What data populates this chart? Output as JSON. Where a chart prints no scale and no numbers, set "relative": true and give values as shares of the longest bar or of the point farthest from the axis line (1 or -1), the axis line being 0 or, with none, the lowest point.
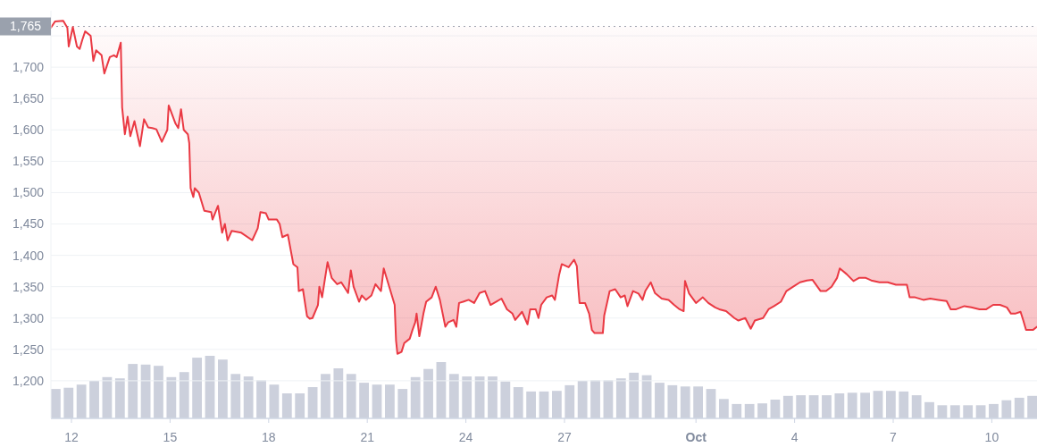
{
  "chart_data": [
    {
      "type": "line",
      "color": "#ea3943",
      "grid": "y",
      "x": [
        "--09-11T09:00",
        "--09-11T12:00",
        "--09-11T18:00",
        "--09-11T21:00",
        "--09-11T22:00",
        "--09-12T01:00",
        "--09-12T04:00",
        "--09-12T06:00",
        "--09-12T08:00",
        "--09-12T10:00",
        "--09-12T14:00",
        "--09-12T16:00",
        "--09-12T18:00",
        "--09-12T22:00",
        "--09-13T00:00",
        "--09-13T04:00",
        "--09-13T07:00",
        "--09-13T09:00",
        "--09-13T12:00",
        "--09-13T13:00",
        "--09-13T15:00",
        "--09-13T17:00",
        "--09-13T19:00",
        "--09-13T22:00",
        "--09-14T02:00",
        "--09-14T05:00",
        "--09-14T08:00",
        "--09-14T11:00",
        "--09-14T14:00",
        "--09-14T18:00",
        "--09-14T22:00",
        "--09-14T23:00",
        "--09-15T04:00",
        "--09-15T06:00",
        "--09-15T08:00",
        "--09-15T10:00",
        "--09-15T13:00",
        "--09-15T14:00",
        "--09-15T15:00",
        "--09-15T17:00",
        "--09-15T18:00",
        "--09-15T21:00",
        "--09-16T01:00",
        "--09-16T06:00",
        "--09-16T07:00",
        "--09-16T11:00",
        "--09-16T14:00",
        "--09-16T16:00",
        "--09-16T18:00",
        "--09-16T21:00",
        "--09-17T04:00",
        "--09-17T12:00",
        "--09-17T16:00",
        "--09-17T18:00",
        "--09-17T22:00",
        "--09-18T00:00",
        "--09-18T06:00",
        "--09-18T08:00",
        "--09-18T10:00",
        "--09-18T14:00",
        "--09-18T18:00",
        "--09-18T21:00",
        "--09-18T22:00",
        "--09-19T01:00",
        "--09-19T04:00",
        "--09-19T06:00",
        "--09-19T08:00",
        "--09-19T12:00",
        "--09-19T13:00",
        "--09-19T15:00",
        "--09-19T17:00",
        "--09-19T19:00",
        "--09-19T22:00",
        "--09-20T02:00",
        "--09-20T05:00",
        "--09-20T10:00",
        "--09-20T12:00",
        "--09-20T14:00",
        "--09-20T18:00",
        "--09-20T20:00",
        "--09-20T23:00",
        "--09-21T03:00",
        "--09-21T06:00",
        "--09-21T10:00",
        "--09-21T12:00",
        "--09-21T20:00",
        "--09-21T21:00",
        "--09-21T22:00",
        "--09-22T01:00",
        "--09-22T03:00",
        "--09-22T07:00",
        "--09-22T09:00",
        "--09-22T11:00",
        "--09-22T12:00",
        "--09-22T14:00",
        "--09-22T17:00",
        "--09-22T19:00",
        "--09-22T23:00",
        "--09-23T02:00",
        "--09-23T05:00",
        "--09-23T09:00",
        "--09-23T11:00",
        "--09-23T15:00",
        "--09-23T17:00",
        "--09-23T19:00",
        "--09-23T22:00",
        "--09-24T02:00",
        "--09-24T06:00",
        "--09-24T10:00",
        "--09-24T14:00",
        "--09-24T18:00",
        "--09-24T22:00",
        "--09-25T02:00",
        "--09-25T06:00",
        "--09-25T10:00",
        "--09-25T12:00",
        "--09-25T17:00",
        "--09-25T21:00",
        "--09-25T23:00",
        "--09-26T03:00",
        "--09-26T05:00",
        "--09-26T07:00",
        "--09-26T11:00",
        "--09-26T15:00",
        "--09-26T17:00",
        "--09-26T20:00",
        "--09-26T22:00",
        "--09-27T03:00",
        "--09-27T07:00",
        "--09-27T09:00",
        "--09-27T10:00",
        "--09-27T11:00",
        "--09-27T15:00",
        "--09-27T18:00",
        "--09-27T20:00",
        "--09-27T22:00",
        "--09-28T01:00",
        "--09-28T04:00",
        "--09-28T05:00",
        "--09-28T09:00",
        "--09-28T13:00",
        "--09-28T17:00",
        "--09-28T20:00",
        "--09-28T22:00",
        "--09-29T02:00",
        "--09-29T06:00",
        "--09-29T09:00",
        "--09-29T11:00",
        "--09-29T15:00",
        "--09-29T18:00",
        "--09-29T23:00",
        "--09-30T04:00",
        "--09-30T08:00",
        "--09-30T12:00",
        "--09-30T15:00",
        "--09-30T16:00",
        "--09-30T19:00",
        "--10-01T00:00",
        "--10-01T05:00",
        "--10-01T09:00",
        "--10-01T14:00",
        "--10-01T17:00",
        "--10-01T22:00",
        "--10-02T04:00",
        "--10-02T07:00",
        "--10-02T12:00",
        "--10-02T16:00",
        "--10-02T19:00",
        "--10-03T01:00",
        "--10-03T05:00",
        "--10-03T09:00",
        "--10-03T14:00",
        "--10-03T18:00",
        "--10-03T23:00",
        "--10-04T04:00",
        "--10-04T09:00",
        "--10-04T13:00",
        "--10-04T19:00",
        "--10-04T23:00",
        "--10-05T03:00",
        "--10-05T07:00",
        "--10-05T09:00",
        "--10-05T14:00",
        "--10-05T19:00",
        "--10-05T23:00",
        "--10-06T04:00",
        "--10-06T08:00",
        "--10-06T14:00",
        "--10-06T20:00",
        "--10-07T02:00",
        "--10-07T10:00",
        "--10-07T12:00",
        "--10-07T16:00",
        "--10-07T22:00",
        "--10-08T03:00",
        "--10-08T09:00",
        "--10-08T15:00",
        "--10-08T18:00",
        "--10-08T22:00",
        "--10-09T04:00",
        "--10-09T09:00",
        "--10-09T15:00",
        "--10-09T20:00",
        "--10-10T01:00",
        "--10-10T06:00",
        "--10-10T11:00",
        "--10-10T14:00",
        "--10-10T17:00",
        "--10-10T21:00",
        "--10-10T23:00",
        "--10-11T01:00",
        "--10-11T06:00",
        "--10-11T09:00"
      ],
      "values": [
        1763,
        1773,
        1774,
        1763,
        1733,
        1764,
        1733,
        1729,
        1744,
        1757,
        1750,
        1710,
        1727,
        1719,
        1690,
        1716,
        1719,
        1716,
        1739,
        1636,
        1593,
        1621,
        1590,
        1614,
        1574,
        1617,
        1604,
        1603,
        1601,
        1581,
        1600,
        1639,
        1610,
        1603,
        1633,
        1600,
        1593,
        1579,
        1507,
        1493,
        1507,
        1500,
        1471,
        1469,
        1457,
        1479,
        1436,
        1450,
        1424,
        1439,
        1436,
        1424,
        1443,
        1469,
        1467,
        1457,
        1457,
        1450,
        1429,
        1433,
        1386,
        1381,
        1343,
        1346,
        1303,
        1299,
        1300,
        1321,
        1350,
        1333,
        1361,
        1389,
        1364,
        1354,
        1357,
        1340,
        1376,
        1350,
        1326,
        1336,
        1329,
        1336,
        1354,
        1343,
        1379,
        1321,
        1264,
        1243,
        1246,
        1260,
        1267,
        1281,
        1293,
        1307,
        1271,
        1307,
        1326,
        1333,
        1350,
        1329,
        1286,
        1293,
        1297,
        1286,
        1324,
        1326,
        1329,
        1324,
        1340,
        1343,
        1321,
        1326,
        1331,
        1314,
        1307,
        1297,
        1310,
        1290,
        1314,
        1314,
        1300,
        1321,
        1333,
        1336,
        1329,
        1368,
        1386,
        1381,
        1393,
        1383,
        1350,
        1324,
        1324,
        1307,
        1281,
        1276,
        1276,
        1276,
        1304,
        1343,
        1346,
        1333,
        1336,
        1319,
        1343,
        1339,
        1329,
        1343,
        1357,
        1340,
        1331,
        1329,
        1321,
        1314,
        1311,
        1359,
        1339,
        1324,
        1333,
        1324,
        1317,
        1314,
        1311,
        1300,
        1296,
        1300,
        1283,
        1296,
        1300,
        1314,
        1319,
        1326,
        1343,
        1350,
        1357,
        1360,
        1361,
        1343,
        1343,
        1350,
        1364,
        1379,
        1370,
        1359,
        1364,
        1364,
        1360,
        1357,
        1357,
        1353,
        1353,
        1333,
        1333,
        1329,
        1331,
        1329,
        1327,
        1314,
        1314,
        1319,
        1317,
        1314,
        1314,
        1321,
        1321,
        1317,
        1307,
        1307,
        1310,
        1296,
        1281,
        1281,
        1286
      ],
      "xlim": [
        "--09-11T09:00",
        "--10-11T09:00"
      ],
      "xticks": [
        {
          "value": "--09-12",
          "label": "12"
        },
        {
          "value": "--09-15",
          "label": "15"
        },
        {
          "value": "--09-18",
          "label": "18"
        },
        {
          "value": "--09-21",
          "label": "21"
        },
        {
          "value": "--09-24",
          "label": "24"
        },
        {
          "value": "--09-27",
          "label": "27"
        },
        {
          "value": "--10-01",
          "label": "Oct"
        },
        {
          "value": "--10-04",
          "label": "4"
        },
        {
          "value": "--10-07",
          "label": "7"
        },
        {
          "value": "--10-10",
          "label": "10"
        }
      ],
      "ylim": [
        1140,
        1790
      ],
      "yticks": [
        {
          "value": 1200,
          "label": "1,200"
        },
        {
          "value": 1250,
          "label": "1,250"
        },
        {
          "value": 1300,
          "label": "1,300"
        },
        {
          "value": 1350,
          "label": "1,350"
        },
        {
          "value": 1400,
          "label": "1,400"
        },
        {
          "value": 1450,
          "label": "1,450"
        },
        {
          "value": 1500,
          "label": "1,500"
        },
        {
          "value": 1550,
          "label": "1,550"
        },
        {
          "value": 1600,
          "label": "1,600"
        },
        {
          "value": 1650,
          "label": "1,650"
        },
        {
          "value": 1700,
          "label": "1,700"
        },
        {
          "value": 1750,
          "label": null
        }
      ],
      "ref_lines": [
        {
          "axis": "y",
          "value": 1765,
          "label": "1,765",
          "color": "#9aa1ad",
          "line_style": "dotted"
        }
      ]
    },
    {
      "type": "bar",
      "relative": true,
      "color": "#ccd0dc",
      "categories": [
        null,
        null,
        null,
        null,
        null,
        null,
        null,
        null,
        null,
        null,
        null,
        null,
        null,
        null,
        null,
        null,
        null,
        null,
        null,
        null,
        null,
        null,
        null,
        null,
        null,
        null,
        null,
        null,
        null,
        null,
        null,
        null,
        null,
        null,
        null,
        null,
        null,
        null,
        null,
        null,
        null,
        null,
        null,
        null,
        null,
        null,
        null,
        null,
        null,
        null,
        null,
        null,
        null,
        null,
        null,
        null,
        null,
        null,
        null,
        null,
        null,
        null,
        null,
        null,
        null,
        null,
        null,
        null,
        null,
        null,
        null,
        null,
        null,
        null,
        null,
        null,
        null
      ],
      "values": [
        0.47,
        0.49,
        0.54,
        0.6,
        0.66,
        0.64,
        0.87,
        0.86,
        0.84,
        0.66,
        0.74,
        0.97,
        1,
        0.94,
        0.71,
        0.67,
        0.61,
        0.54,
        0.4,
        0.4,
        0.5,
        0.71,
        0.8,
        0.71,
        0.57,
        0.54,
        0.54,
        0.47,
        0.66,
        0.79,
        0.9,
        0.71,
        0.67,
        0.67,
        0.67,
        0.59,
        0.5,
        0.43,
        0.43,
        0.44,
        0.53,
        0.6,
        0.61,
        0.61,
        0.64,
        0.73,
        0.69,
        0.57,
        0.53,
        0.51,
        0.51,
        0.47,
        0.31,
        0.23,
        0.23,
        0.24,
        0.3,
        0.36,
        0.37,
        0.37,
        0.37,
        0.4,
        0.41,
        0.41,
        0.44,
        0.44,
        0.43,
        0.37,
        0.26,
        0.21,
        0.21,
        0.21,
        0.21,
        0.23,
        0.29,
        0.33,
        0.36
      ]
    }
  ]
}
